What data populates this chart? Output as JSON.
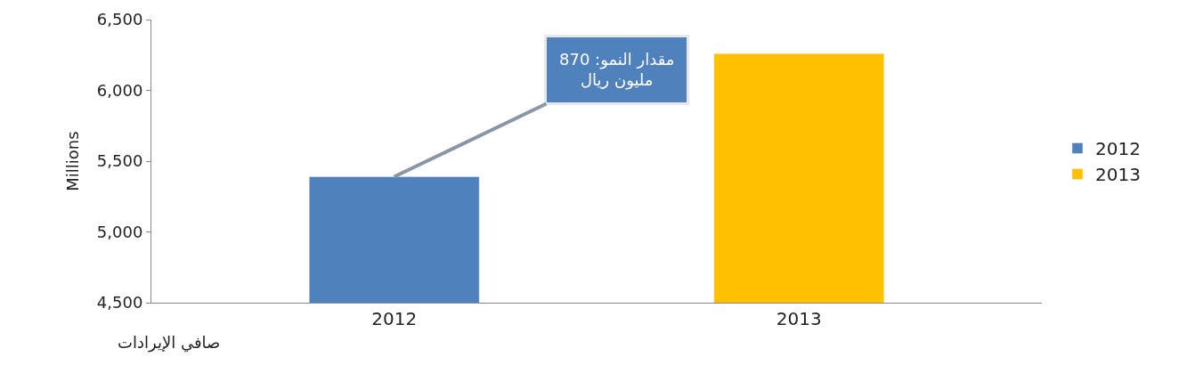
{
  "chart_data": {
    "type": "bar",
    "xlabel": "صافي الإيرادات",
    "ylabel": "Millions",
    "categories": [
      "2012",
      "2013"
    ],
    "series": [
      {
        "name": "2012",
        "color": "#4f81bd",
        "values": [
          5390,
          null
        ]
      },
      {
        "name": "2013",
        "color": "#ffc000",
        "values": [
          null,
          6260
        ]
      }
    ],
    "ylim": [
      4500,
      6500
    ],
    "yticks": [
      {
        "value": 4500,
        "label": "4,500"
      },
      {
        "value": 5000,
        "label": "5,000"
      },
      {
        "value": 5500,
        "label": "5,500"
      },
      {
        "value": 6000,
        "label": "6,000"
      },
      {
        "value": 6500,
        "label": "6,500"
      }
    ],
    "legend": "right",
    "annotations": [
      {
        "text": "مقدار النمو: 870\nمليون ريال",
        "x": "2012",
        "y": 5390
      }
    ]
  }
}
